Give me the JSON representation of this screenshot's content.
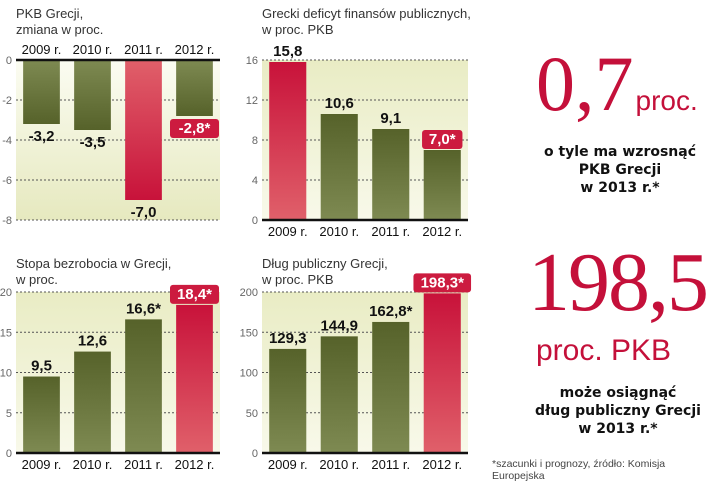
{
  "colors": {
    "bar": "#5e6b2e",
    "highlight": "#cc1b3f",
    "panel": "#eef0cf",
    "axis": "#111111"
  },
  "chart_data": [
    {
      "type": "bar",
      "title": "PKB Grecji,",
      "subtitle": "zmiana w proc.",
      "categories": [
        "2009 r.",
        "2010 r.",
        "2011 r.",
        "2012 r."
      ],
      "values": [
        -3.2,
        -3.5,
        -7.0,
        -2.8
      ],
      "labels": [
        "-3,2",
        "-3,5",
        "-7,0",
        "-2,8*"
      ],
      "highlight_bar": [
        false,
        false,
        true,
        false
      ],
      "highlight_label": [
        false,
        false,
        false,
        true
      ],
      "yticks": [
        0,
        -2,
        -4,
        -6,
        -8
      ],
      "ylim": [
        -8,
        0
      ],
      "grid": true,
      "category_axis": "top"
    },
    {
      "type": "bar",
      "title": "Grecki deficyt finansów publicznych,",
      "subtitle": "w proc. PKB",
      "categories": [
        "2009 r.",
        "2010 r.",
        "2011 r.",
        "2012 r."
      ],
      "values": [
        15.8,
        10.6,
        9.1,
        7.0
      ],
      "labels": [
        "15,8",
        "10,6",
        "9,1",
        "7,0*"
      ],
      "highlight_bar": [
        true,
        false,
        false,
        false
      ],
      "highlight_label": [
        false,
        false,
        false,
        true
      ],
      "yticks": [
        0,
        4,
        8,
        12,
        16
      ],
      "ylim": [
        0,
        16
      ],
      "grid": true,
      "category_axis": "bottom"
    },
    {
      "type": "bar",
      "title": "Stopa bezrobocia w Grecji,",
      "subtitle": "w proc.",
      "categories": [
        "2009 r.",
        "2010 r.",
        "2011 r.",
        "2012 r."
      ],
      "values": [
        9.5,
        12.6,
        16.6,
        18.4
      ],
      "labels": [
        "9,5",
        "12,6",
        "16,6*",
        "18,4*"
      ],
      "highlight_bar": [
        false,
        false,
        false,
        true
      ],
      "highlight_label": [
        false,
        false,
        false,
        true
      ],
      "yticks": [
        0,
        5,
        10,
        15,
        20
      ],
      "ylim": [
        0,
        20
      ],
      "grid": true,
      "category_axis": "bottom"
    },
    {
      "type": "bar",
      "title": "Dług publiczny Grecji,",
      "subtitle": "w proc. PKB",
      "categories": [
        "2009 r.",
        "2010 r.",
        "2011 r.",
        "2012 r."
      ],
      "values": [
        129.3,
        144.9,
        162.8,
        198.3
      ],
      "labels": [
        "129,3",
        "144,9",
        "162,8*",
        "198,3*"
      ],
      "highlight_bar": [
        false,
        false,
        false,
        true
      ],
      "highlight_label": [
        false,
        false,
        false,
        true
      ],
      "yticks": [
        0,
        50,
        100,
        150,
        200
      ],
      "ylim": [
        0,
        200
      ],
      "grid": true,
      "category_axis": "bottom"
    }
  ],
  "callouts": {
    "gdp_growth": {
      "number": "0,7",
      "unit": "proc.",
      "line1": "o tyle ma wzrosnąć",
      "line2": "PKB Grecji",
      "line3": "w 2013 r.*"
    },
    "debt": {
      "number": "198,5",
      "unit": "proc. PKB",
      "line1": "może osiągnąć",
      "line2": "dług publiczny Grecji",
      "line3": "w 2013 r.*"
    }
  },
  "footnote": "*szacunki i prognozy, źródło: Komisja Europejska"
}
